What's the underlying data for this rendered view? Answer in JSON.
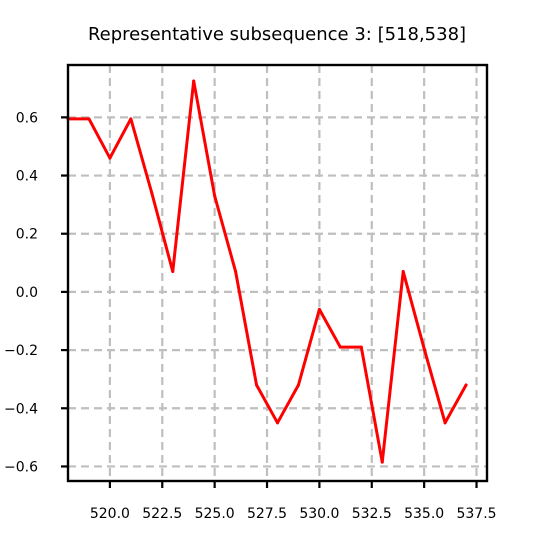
{
  "chart_data": {
    "type": "line",
    "title": "Representative subsequence 3: [518,538]",
    "xlabel": "",
    "ylabel": "",
    "xlim": [
      518,
      538
    ],
    "ylim": [
      -0.65,
      0.78
    ],
    "xticks": [
      520.0,
      522.5,
      525.0,
      527.5,
      530.0,
      532.5,
      535.0,
      537.5
    ],
    "xtick_labels": [
      "520.0",
      "522.5",
      "525.0",
      "527.5",
      "530.0",
      "532.5",
      "535.0",
      "537.5"
    ],
    "yticks": [
      -0.6,
      -0.4,
      -0.2,
      0.0,
      0.2,
      0.4,
      0.6
    ],
    "ytick_labels": [
      "−0.6",
      "−0.4",
      "−0.2",
      "0.0",
      "0.2",
      "0.4",
      "0.6"
    ],
    "grid": true,
    "series": [
      {
        "color": "#ff0000",
        "x": [
          518,
          519,
          520,
          521,
          522,
          523,
          524,
          525,
          526,
          527,
          528,
          529,
          530,
          531,
          532,
          533,
          534,
          535,
          536,
          537
        ],
        "y": [
          0.595,
          0.595,
          0.46,
          0.595,
          0.34,
          0.07,
          0.725,
          0.33,
          0.07,
          -0.32,
          -0.45,
          -0.32,
          -0.06,
          -0.19,
          -0.19,
          -0.585,
          0.07,
          -0.195,
          -0.45,
          -0.32
        ]
      }
    ]
  },
  "colors": {
    "series_line": "#ff0000",
    "grid": "#bfbfbf",
    "axes": "#000000"
  }
}
